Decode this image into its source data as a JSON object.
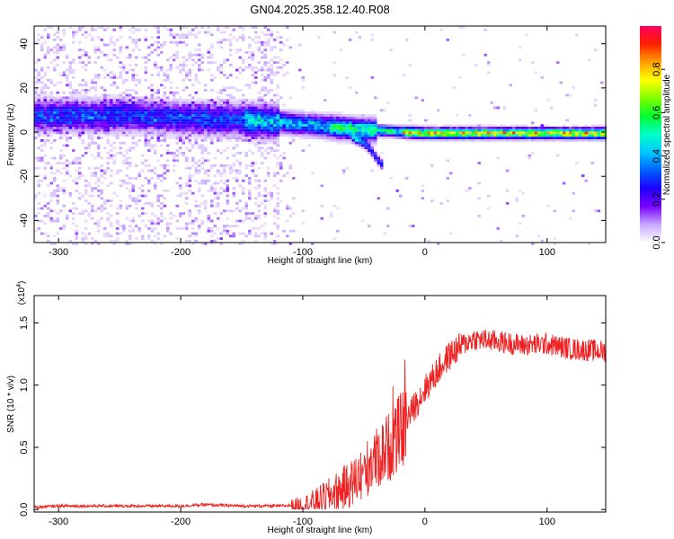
{
  "title": "GN04.2025.358.12.40.R08",
  "chart_data": [
    {
      "type": "heatmap",
      "xlabel": "Height of straight line (km)",
      "ylabel": "Frequency (Hz)",
      "xlim": [
        -320,
        148
      ],
      "ylim": [
        -50,
        48
      ],
      "xticks": [
        -300,
        -200,
        -100,
        0,
        100
      ],
      "yticks": [
        -40,
        -20,
        0,
        20,
        40
      ],
      "colorbar": {
        "label": "Normalized spectral amplitude",
        "range": [
          0,
          1
        ],
        "ticks": [
          "0.0",
          "0.2",
          "0.4",
          "0.6",
          "0.8"
        ],
        "tick_values": [
          0,
          0.2,
          0.4,
          0.6,
          0.8
        ],
        "colormap": [
          "#ffffff",
          "#c8a8ff",
          "#7a00ff",
          "#1e00ff",
          "#0060ff",
          "#00c8ff",
          "#00ffc8",
          "#00ff30",
          "#80ff00",
          "#ffff00",
          "#ffa000",
          "#ff2000",
          "#ff0060"
        ]
      },
      "ridge": {
        "x": [
          -320,
          -280,
          -240,
          -200,
          -160,
          -120,
          -80,
          -50,
          -20,
          0,
          50,
          100,
          148
        ],
        "y": [
          8,
          8,
          8,
          7,
          6,
          5,
          3,
          1.5,
          0.5,
          0,
          0,
          0,
          0
        ]
      },
      "branch": {
        "x": [
          -60,
          -50,
          -45,
          -40,
          -35
        ],
        "y": [
          -2,
          -5,
          -8,
          -12,
          -15
        ]
      }
    },
    {
      "type": "line",
      "xlabel": "Height of straight line (km)",
      "ylabel": "SNR (10 * v/v)",
      "y_multiplier": "(x10",
      "y_multiplier_exp": "4",
      "xlim": [
        -320,
        148
      ],
      "ylim": [
        -0.02,
        1.72
      ],
      "xticks": [
        -300,
        -200,
        -100,
        0,
        100
      ],
      "yticks": [
        0,
        0.5,
        1.0,
        1.5
      ],
      "ytick_labels": [
        "0.0",
        "0.5",
        "1.0",
        "1.5"
      ],
      "color": "#ee2222",
      "series": [
        {
          "x": [
            -320,
            -300,
            -250,
            -200,
            -180,
            -150,
            -120,
            -100,
            -90,
            -80,
            -70,
            -60,
            -50,
            -40,
            -30,
            -20,
            -10,
            0,
            10,
            20,
            30,
            40,
            60,
            80,
            100,
            120,
            148
          ],
          "y": [
            0.02,
            0.03,
            0.03,
            0.03,
            0.04,
            0.03,
            0.03,
            0.04,
            0.07,
            0.12,
            0.17,
            0.23,
            0.33,
            0.43,
            0.53,
            0.65,
            0.82,
            0.98,
            1.12,
            1.25,
            1.33,
            1.38,
            1.36,
            1.33,
            1.34,
            1.3,
            1.28
          ]
        }
      ]
    }
  ]
}
